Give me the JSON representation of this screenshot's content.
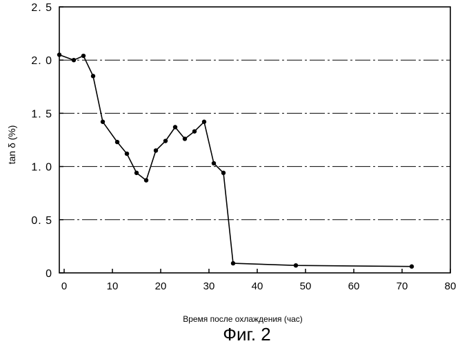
{
  "chart_data": {
    "type": "line",
    "title": "",
    "xlabel": "Время после охлаждения (час)",
    "ylabel": "tan δ (%)",
    "xlim": [
      0,
      80
    ],
    "ylim": [
      0,
      2.5
    ],
    "x_ticks": [
      "0",
      "10",
      "20",
      "30",
      "40",
      "50",
      "60",
      "70",
      "80"
    ],
    "y_ticks": [
      "0",
      "0. 5",
      "1. 0",
      "1. 5",
      "2. 0",
      "2. 5"
    ],
    "grid": "horizontal dash-dot",
    "series": [
      {
        "x": [
          -1,
          2,
          4,
          6,
          8,
          11,
          13,
          15,
          17,
          19,
          21,
          23,
          25,
          27,
          29,
          31,
          33,
          35,
          48,
          72
        ],
        "y": [
          2.05,
          2.0,
          2.04,
          1.85,
          1.42,
          1.23,
          1.12,
          0.94,
          0.87,
          1.15,
          1.24,
          1.37,
          1.26,
          1.33,
          1.42,
          1.03,
          0.94,
          0.09,
          0.07,
          0.06
        ]
      }
    ]
  },
  "caption": "Фиг. 2",
  "colors": {
    "line": "#000000",
    "grid": "#000000",
    "background": "#ffffff"
  }
}
